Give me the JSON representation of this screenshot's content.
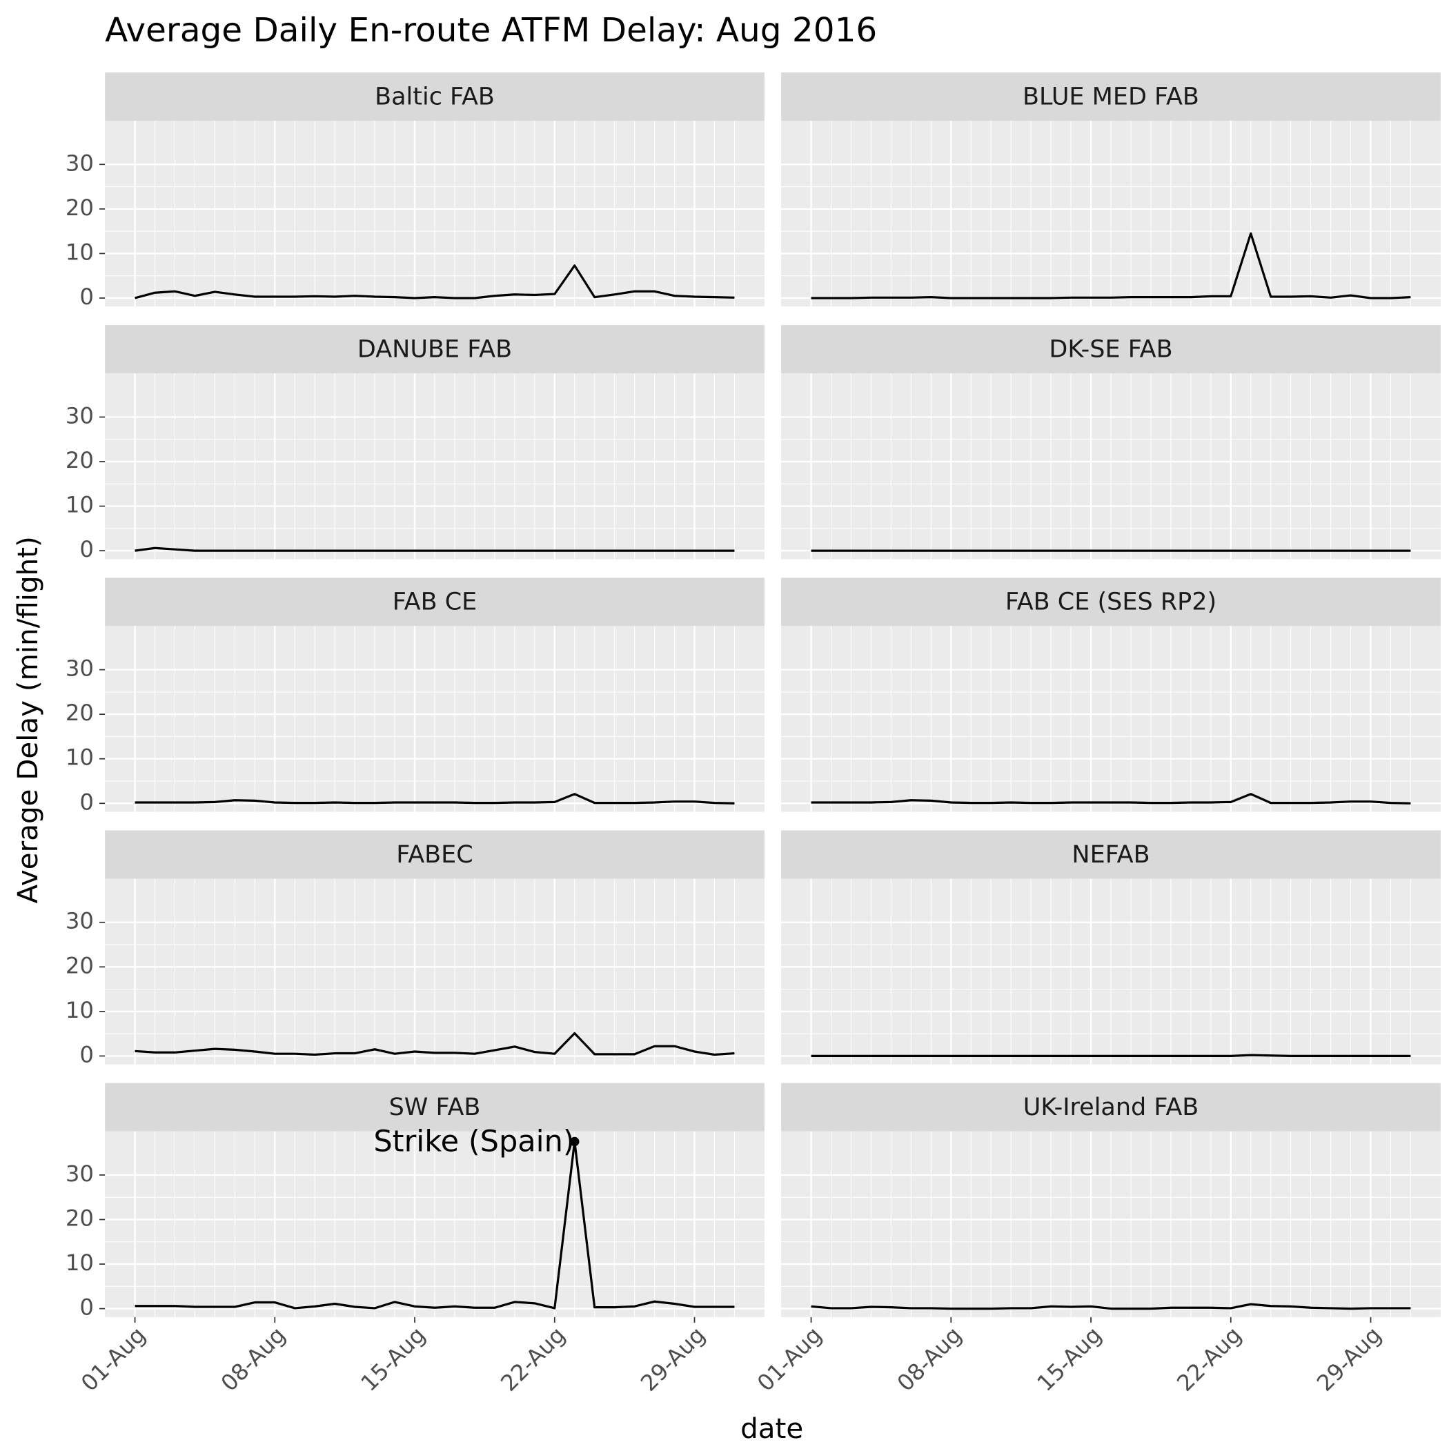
{
  "chart_data": {
    "type": "line",
    "title": "Average Daily En-route ATFM Delay: Aug 2016",
    "x_label": "date",
    "y_label": "Average Delay (min/flight)",
    "color": "#000000",
    "grid": true,
    "x": [
      1,
      2,
      3,
      4,
      5,
      6,
      7,
      8,
      9,
      10,
      11,
      12,
      13,
      14,
      15,
      16,
      17,
      18,
      19,
      20,
      21,
      22,
      23,
      24,
      25,
      26,
      27,
      28,
      29,
      30,
      31
    ],
    "xlim": [
      -0.5,
      32.5
    ],
    "xticks": [
      {
        "value": 1,
        "label": "01-Aug"
      },
      {
        "value": 8,
        "label": "08-Aug"
      },
      {
        "value": 15,
        "label": "15-Aug"
      },
      {
        "value": 22,
        "label": "22-Aug"
      },
      {
        "value": 29,
        "label": "29-Aug"
      }
    ],
    "ylim": [
      -1.9,
      39.8
    ],
    "yticks": [
      0,
      10,
      20,
      30
    ],
    "facets": [
      {
        "name": "Baltic FAB",
        "values": [
          0,
          1.2,
          1.5,
          0.5,
          1.4,
          0.8,
          0.3,
          0.3,
          0.3,
          0.4,
          0.3,
          0.5,
          0.3,
          0.2,
          0,
          0.2,
          0,
          0,
          0.5,
          0.8,
          0.7,
          0.9,
          7.3,
          0.2,
          0.8,
          1.5,
          1.5,
          0.5,
          0.3,
          0.2,
          0.1
        ]
      },
      {
        "name": "BLUE MED FAB",
        "values": [
          0,
          0,
          0,
          0.1,
          0.1,
          0.1,
          0.2,
          0,
          0,
          0,
          0,
          0,
          0,
          0.1,
          0.1,
          0.1,
          0.2,
          0.2,
          0.2,
          0.2,
          0.4,
          0.4,
          14.5,
          0.3,
          0.3,
          0.4,
          0.1,
          0.6,
          0,
          0,
          0.2
        ]
      },
      {
        "name": "DANUBE FAB",
        "values": [
          0,
          0.6,
          0.3,
          0,
          0,
          0,
          0,
          0,
          0,
          0,
          0,
          0,
          0,
          0,
          0,
          0,
          0,
          0,
          0,
          0,
          0,
          0,
          0,
          0,
          0,
          0,
          0,
          0,
          0,
          0,
          0
        ]
      },
      {
        "name": "DK-SE FAB",
        "values": [
          0,
          0,
          0,
          0,
          0,
          0,
          0,
          0,
          0,
          0,
          0,
          0,
          0,
          0,
          0,
          0,
          0,
          0,
          0,
          0,
          0,
          0,
          0,
          0,
          0,
          0,
          0,
          0,
          0,
          0,
          0
        ]
      },
      {
        "name": "FAB CE",
        "values": [
          0.2,
          0.2,
          0.2,
          0.2,
          0.3,
          0.7,
          0.6,
          0.2,
          0.1,
          0.1,
          0.2,
          0.1,
          0.1,
          0.2,
          0.2,
          0.2,
          0.2,
          0.1,
          0.1,
          0.2,
          0.2,
          0.3,
          2.1,
          0.1,
          0.1,
          0.1,
          0.2,
          0.4,
          0.4,
          0.1,
          0
        ]
      },
      {
        "name": "FAB CE (SES RP2)",
        "values": [
          0.2,
          0.2,
          0.2,
          0.2,
          0.3,
          0.7,
          0.6,
          0.2,
          0.1,
          0.1,
          0.2,
          0.1,
          0.1,
          0.2,
          0.2,
          0.2,
          0.2,
          0.1,
          0.1,
          0.2,
          0.2,
          0.3,
          2.1,
          0.1,
          0.1,
          0.1,
          0.2,
          0.4,
          0.4,
          0.1,
          0
        ]
      },
      {
        "name": "FABEC",
        "values": [
          1.1,
          0.8,
          0.8,
          1.2,
          1.6,
          1.4,
          1.0,
          0.5,
          0.5,
          0.3,
          0.6,
          0.6,
          1.5,
          0.5,
          1.0,
          0.7,
          0.7,
          0.5,
          1.3,
          2.1,
          0.9,
          0.5,
          5.1,
          0.4,
          0.4,
          0.4,
          2.2,
          2.2,
          1.0,
          0.3,
          0.6
        ]
      },
      {
        "name": "NEFAB",
        "values": [
          0,
          0,
          0,
          0,
          0,
          0,
          0,
          0,
          0,
          0,
          0,
          0,
          0,
          0,
          0,
          0,
          0,
          0,
          0,
          0,
          0,
          0,
          0.2,
          0.1,
          0,
          0,
          0,
          0,
          0,
          0,
          0
        ]
      },
      {
        "name": "SW FAB",
        "values": [
          0.6,
          0.6,
          0.6,
          0.4,
          0.4,
          0.4,
          1.4,
          1.4,
          0.1,
          0.5,
          1.1,
          0.4,
          0.1,
          1.5,
          0.5,
          0.2,
          0.5,
          0.2,
          0.2,
          1.5,
          1.2,
          0.1,
          37.5,
          0.3,
          0.3,
          0.5,
          1.6,
          1.1,
          0.4,
          0.4,
          0.4
        ],
        "annotation": {
          "label": "Strike (Spain)",
          "x": 23,
          "y": 37.5
        }
      },
      {
        "name": "UK-Ireland FAB",
        "values": [
          0.5,
          0.1,
          0.1,
          0.4,
          0.3,
          0.1,
          0.1,
          0,
          0,
          0,
          0.1,
          0.1,
          0.5,
          0.4,
          0.5,
          0,
          0,
          0,
          0.2,
          0.2,
          0.2,
          0.1,
          1.0,
          0.6,
          0.5,
          0.2,
          0.1,
          0,
          0.1,
          0.1,
          0.1
        ]
      }
    ]
  }
}
